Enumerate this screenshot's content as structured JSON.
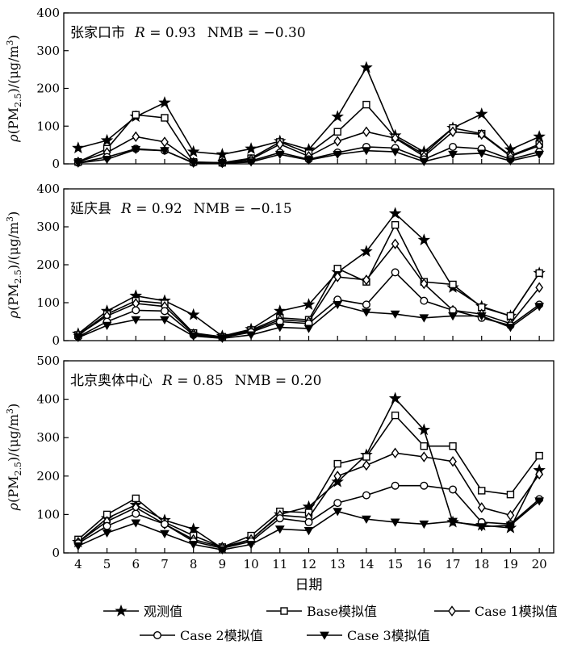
{
  "chart_data": {
    "type": "line",
    "x": [
      4,
      5,
      6,
      7,
      8,
      9,
      10,
      11,
      12,
      13,
      14,
      15,
      16,
      17,
      18,
      19,
      20
    ],
    "xlabel": "日期",
    "ylabel_parts": [
      "ρ(PM",
      "2.5",
      ")/(μg/m",
      "3",
      ")"
    ],
    "legend": {
      "placement": "bottom",
      "entries": [
        {
          "name": "观测值",
          "marker": "star"
        },
        {
          "name": "Base模拟值",
          "marker": "square"
        },
        {
          "name": "Case 1模拟值",
          "marker": "diamond"
        },
        {
          "name": "Case 2模拟值",
          "marker": "circle"
        },
        {
          "name": "Case 3模拟值",
          "marker": "triangle-down"
        }
      ]
    },
    "panels": [
      {
        "site": "张家口市",
        "r_label": "R",
        "r_value": " = 0.93",
        "nmb": "NMB = −0.30",
        "ylim": [
          0,
          400
        ],
        "yticks": [
          0,
          100,
          200,
          300,
          400
        ],
        "series": [
          {
            "name": "观测值",
            "marker": "star",
            "values": [
              42,
              62,
              125,
              162,
              32,
              25,
              40,
              60,
              38,
              125,
              255,
              75,
              32,
              95,
              132,
              38,
              72
            ]
          },
          {
            "name": "Base模拟值",
            "marker": "square",
            "values": [
              5,
              40,
              130,
              122,
              5,
              3,
              15,
              58,
              28,
              85,
              157,
              70,
              25,
              95,
              80,
              22,
              52
            ]
          },
          {
            "name": "Case 1模拟值",
            "marker": "diamond",
            "values": [
              5,
              30,
              72,
              58,
              4,
              3,
              12,
              52,
              20,
              60,
              85,
              68,
              20,
              85,
              78,
              20,
              48
            ]
          },
          {
            "name": "Case 2模拟值",
            "marker": "circle",
            "values": [
              3,
              18,
              40,
              35,
              3,
              2,
              8,
              30,
              12,
              30,
              45,
              42,
              12,
              45,
              40,
              12,
              32
            ]
          },
          {
            "name": "Case 3模拟值",
            "marker": "triangle-down",
            "values": [
              2,
              12,
              38,
              35,
              2,
              1,
              5,
              25,
              10,
              25,
              35,
              32,
              6,
              25,
              28,
              8,
              25
            ]
          }
        ]
      },
      {
        "site": "延庆县",
        "r_label": "R",
        "r_value": " = 0.92",
        "nmb": "NMB = −0.15",
        "ylim": [
          0,
          400
        ],
        "yticks": [
          0,
          100,
          200,
          300,
          400
        ],
        "series": [
          {
            "name": "观测值",
            "marker": "star",
            "values": [
              18,
              78,
              118,
              105,
              68,
              12,
              30,
              78,
              95,
              180,
              235,
              335,
              265,
              140,
              90,
              65,
              178
            ]
          },
          {
            "name": "Base模拟值",
            "marker": "square",
            "values": [
              15,
              70,
              105,
              98,
              20,
              10,
              28,
              60,
              55,
              190,
              155,
              305,
              155,
              148,
              88,
              65,
              178
            ]
          },
          {
            "name": "Case 1模拟值",
            "marker": "diamond",
            "values": [
              15,
              65,
              98,
              90,
              18,
              10,
              25,
              55,
              50,
              168,
              160,
              255,
              150,
              80,
              70,
              45,
              140
            ]
          },
          {
            "name": "Case 2模拟值",
            "marker": "circle",
            "values": [
              10,
              50,
              80,
              78,
              15,
              8,
              22,
              50,
              45,
              108,
              95,
              180,
              105,
              80,
              60,
              40,
              95
            ]
          },
          {
            "name": "Case 3模拟值",
            "marker": "triangle-down",
            "values": [
              8,
              40,
              55,
              55,
              12,
              6,
              15,
              35,
              32,
              95,
              75,
              70,
              60,
              65,
              65,
              35,
              90
            ]
          }
        ]
      },
      {
        "site": "北京奥体中心",
        "r_label": "R",
        "r_value": " = 0.85",
        "nmb": "NMB = 0.20",
        "ylim": [
          0,
          500
        ],
        "yticks": [
          0,
          100,
          200,
          300,
          400,
          500
        ],
        "series": [
          {
            "name": "观测值",
            "marker": "star",
            "values": [
              28,
              90,
              125,
              85,
              62,
              12,
              35,
              100,
              120,
              185,
              255,
              402,
              320,
              80,
              72,
              65,
              215
            ]
          },
          {
            "name": "Base模拟值",
            "marker": "square",
            "values": [
              35,
              100,
              142,
              80,
              45,
              15,
              45,
              108,
              105,
              232,
              250,
              358,
              278,
              278,
              162,
              152,
              253
            ]
          },
          {
            "name": "Case 1模拟值",
            "marker": "diamond",
            "values": [
              28,
              82,
              118,
              75,
              35,
              15,
              35,
              98,
              92,
              200,
              228,
              260,
              250,
              238,
              118,
              98,
              205
            ]
          },
          {
            "name": "Case 2模拟值",
            "marker": "circle",
            "values": [
              25,
              70,
              102,
              75,
              30,
              12,
              30,
              90,
              80,
              130,
              150,
              175,
              175,
              165,
              80,
              75,
              140
            ]
          },
          {
            "name": "Case 3模拟值",
            "marker": "triangle-down",
            "values": [
              18,
              52,
              78,
              50,
              22,
              8,
              22,
              62,
              58,
              108,
              88,
              80,
              75,
              82,
              68,
              72,
              135
            ]
          }
        ]
      }
    ]
  }
}
